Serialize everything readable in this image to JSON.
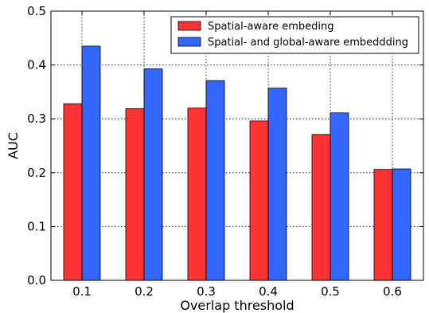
{
  "chart_data": {
    "type": "bar",
    "categories": [
      "0.1",
      "0.2",
      "0.3",
      "0.4",
      "0.5",
      "0.6"
    ],
    "series": [
      {
        "name": "Spatial-aware embeding",
        "color": "#ff3333",
        "values": [
          0.328,
          0.319,
          0.32,
          0.296,
          0.271,
          0.206
        ]
      },
      {
        "name": "Spatial- and global-aware embeddding",
        "color": "#3366ff",
        "values": [
          0.435,
          0.393,
          0.371,
          0.357,
          0.311,
          0.207
        ]
      }
    ],
    "xlabel": "Overlap threshold",
    "ylabel": "AUC",
    "ylim": [
      0,
      0.5
    ],
    "yticks": [
      "0.0",
      "0.1",
      "0.2",
      "0.3",
      "0.4",
      "0.5"
    ],
    "grid": true,
    "legend_position": "top-right"
  }
}
